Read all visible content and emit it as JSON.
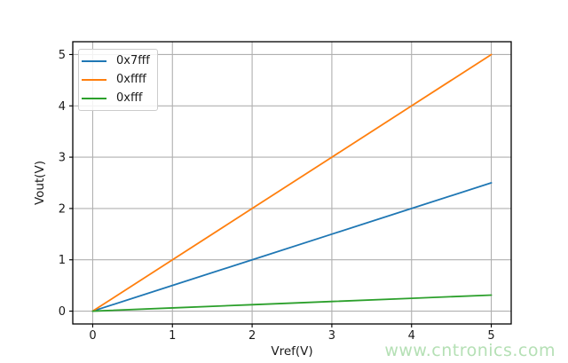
{
  "figure": {
    "background": "#ffffff",
    "watermark": {
      "text": "www.cntronics.com",
      "color": "#b5e0b5"
    }
  },
  "chart_data": {
    "type": "line",
    "xlabel": "Vref(V)",
    "ylabel": "Vout(V)",
    "x": [
      0,
      1,
      2,
      3,
      4,
      5
    ],
    "series": [
      {
        "name": "0x7fff",
        "color": "#1f77b4",
        "values": [
          0,
          0.5,
          1.0,
          1.5,
          2.0,
          2.5
        ]
      },
      {
        "name": "0xffff",
        "color": "#ff7f0e",
        "values": [
          0,
          1,
          2,
          3,
          4,
          5
        ]
      },
      {
        "name": "0xfff",
        "color": "#2ca02c",
        "values": [
          0,
          0.0625,
          0.125,
          0.1875,
          0.25,
          0.3125
        ]
      }
    ],
    "x_ticks": [
      "0",
      "1",
      "2",
      "3",
      "4",
      "5"
    ],
    "y_ticks": [
      "0",
      "1",
      "2",
      "3",
      "4",
      "5"
    ],
    "xlim": [
      -0.25,
      5.25
    ],
    "ylim": [
      -0.25,
      5.25
    ],
    "grid": true,
    "grid_color": "#b0b0b0",
    "axis_color": "#000000",
    "tick_label_color": "#1a1a1a",
    "legend_position": "upper-left"
  }
}
